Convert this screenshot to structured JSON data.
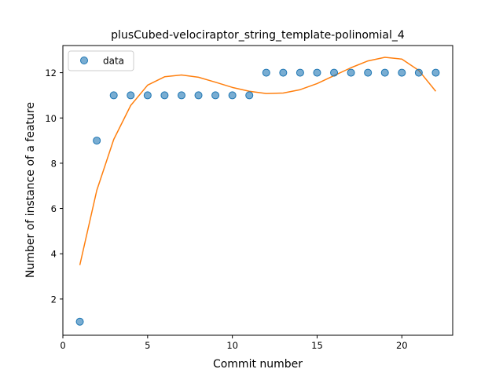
{
  "chart_data": {
    "type": "scatter",
    "title": "plusCubed-velociraptor_string_template-polinomial_4",
    "xlabel": "Commit number",
    "ylabel": "Number of instance of a feature",
    "xlim": [
      0,
      23
    ],
    "ylim": [
      0.4,
      13.2
    ],
    "xticks": [
      0,
      5,
      10,
      15,
      20
    ],
    "yticks": [
      2,
      4,
      6,
      8,
      10,
      12
    ],
    "grid": false,
    "legend_position": "top-left",
    "series": [
      {
        "name": "data",
        "kind": "scatter",
        "color": "#1f77b4",
        "x": [
          1,
          2,
          3,
          4,
          5,
          6,
          7,
          8,
          9,
          10,
          11,
          12,
          13,
          14,
          15,
          16,
          17,
          18,
          19,
          20,
          21,
          22
        ],
        "y": [
          1,
          9,
          11,
          11,
          11,
          11,
          11,
          11,
          11,
          11,
          11,
          12,
          12,
          12,
          12,
          12,
          12,
          12,
          12,
          12,
          12,
          12
        ]
      },
      {
        "kind": "line",
        "color": "#ff7f0e",
        "x": [
          1,
          2,
          3,
          4,
          5,
          6,
          7,
          8,
          9,
          10,
          11,
          12,
          13,
          14,
          15,
          16,
          17,
          18,
          19,
          20,
          21,
          22
        ],
        "y": [
          3.5,
          6.8,
          9.05,
          10.55,
          11.45,
          11.82,
          11.9,
          11.8,
          11.58,
          11.35,
          11.18,
          11.08,
          11.1,
          11.25,
          11.52,
          11.87,
          12.22,
          12.52,
          12.68,
          12.6,
          12.1,
          11.18
        ]
      }
    ]
  }
}
